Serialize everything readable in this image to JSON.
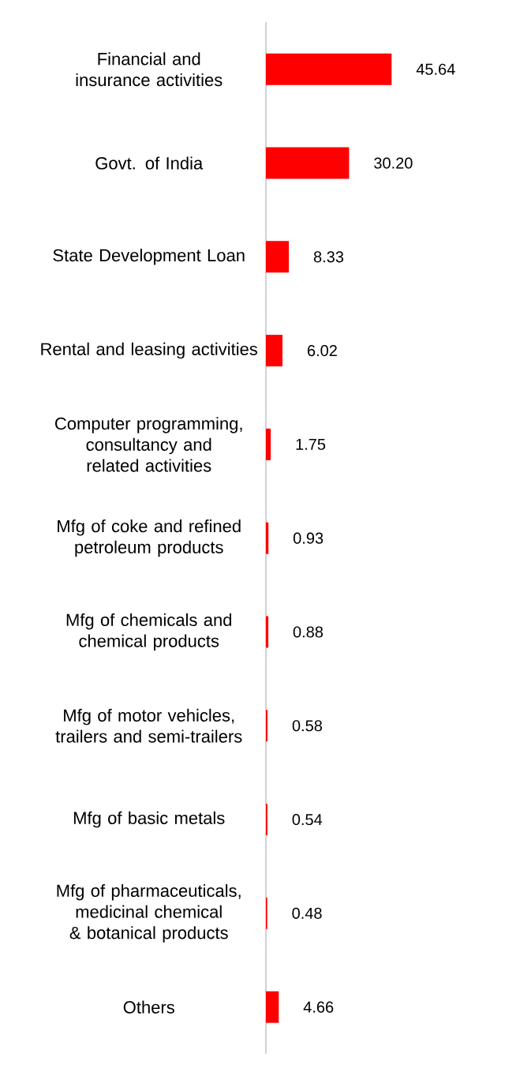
{
  "chart_data": {
    "type": "bar",
    "orientation": "horizontal",
    "categories": [
      "Financial and insurance activities",
      "Govt. of India",
      "State Development Loan",
      "Rental and leasing activities",
      "Computer programming, consultancy and related activities",
      "Mfg of coke and refined petroleum products",
      "Mfg of chemicals and chemical products",
      "Mfg of motor vehicles, trailers and semi-trailers",
      "Mfg of basic metals",
      "Mfg of pharmaceuticals, medicinal chemical & botanical products",
      "Others"
    ],
    "values": [
      45.64,
      30.2,
      8.33,
      6.02,
      1.75,
      0.93,
      0.88,
      0.58,
      0.54,
      0.48,
      4.66
    ],
    "value_labels": [
      "45.64",
      "30.20",
      "8.33",
      "6.02",
      "1.75",
      "0.93",
      "0.88",
      "0.58",
      "0.54",
      "0.48",
      "4.66"
    ],
    "color": "#ff0000"
  }
}
